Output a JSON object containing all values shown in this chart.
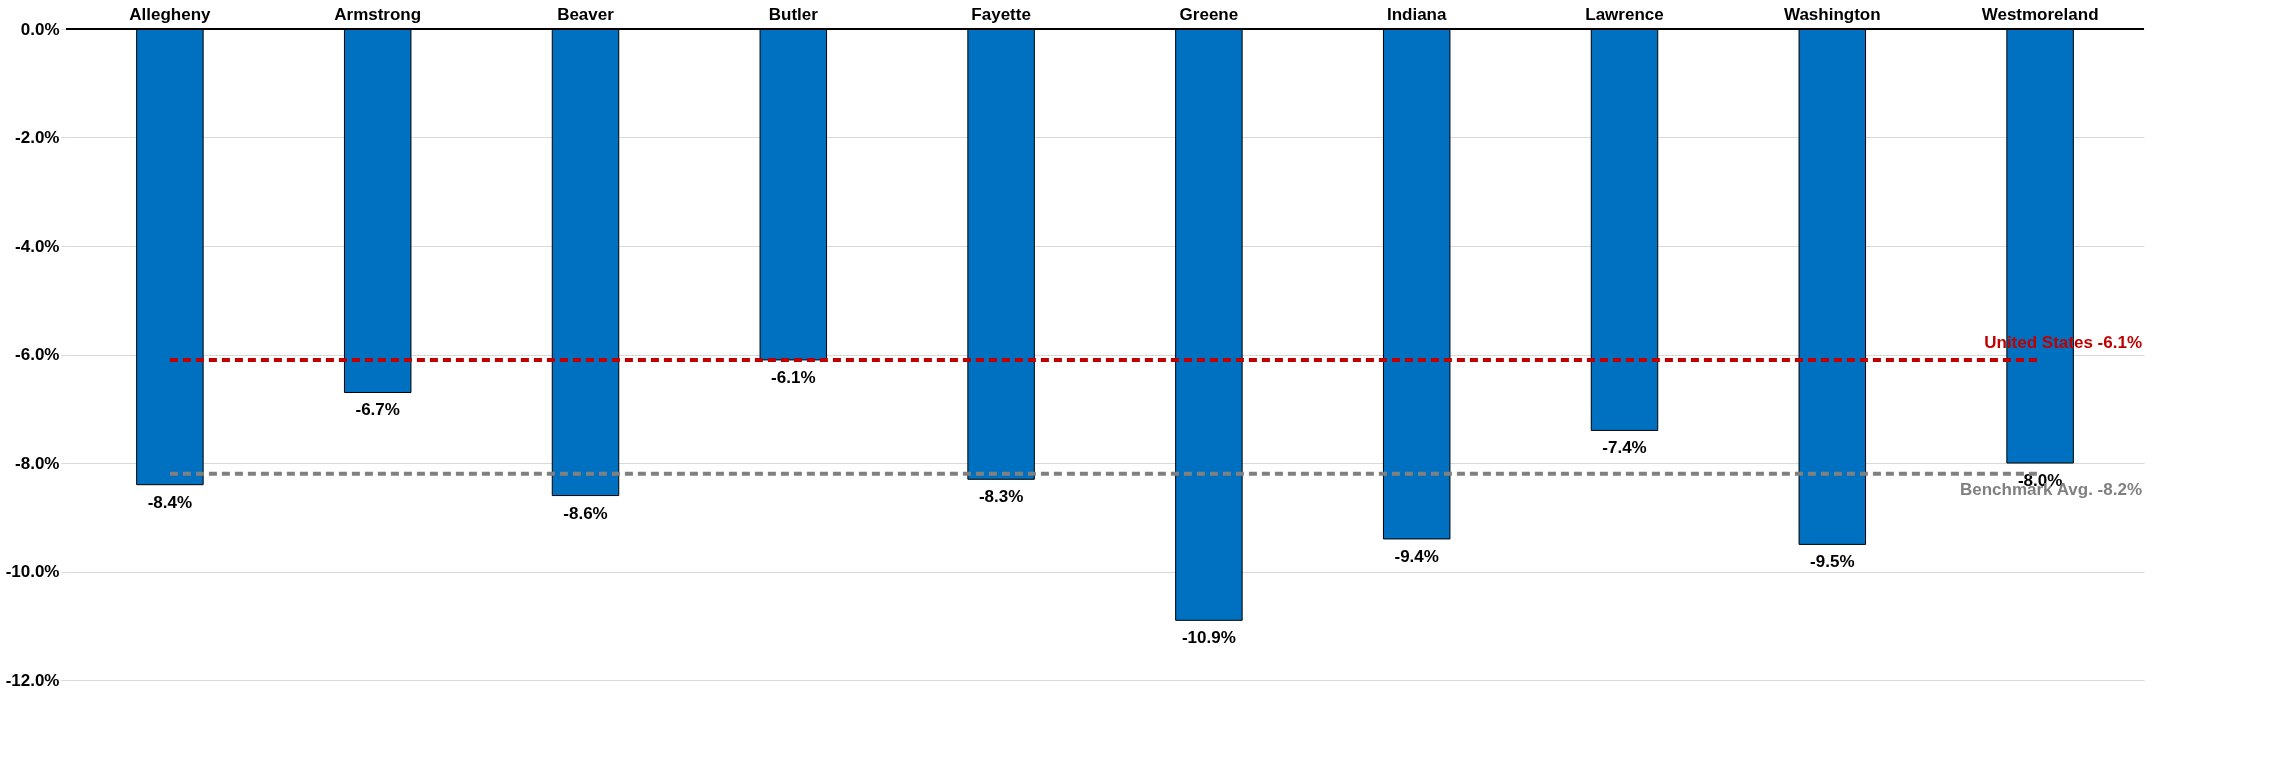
{
  "chart_data": {
    "type": "bar",
    "categories": [
      "Allegheny",
      "Armstrong",
      "Beaver",
      "Butler",
      "Fayette",
      "Greene",
      "Indiana",
      "Lawrence",
      "Washington",
      "Westmoreland"
    ],
    "values": [
      -8.4,
      -6.7,
      -8.6,
      -6.1,
      -8.3,
      -10.9,
      -9.4,
      -7.4,
      -9.5,
      -8.0
    ],
    "value_labels": [
      "-8.4%",
      "-6.7%",
      "-8.6%",
      "-6.1%",
      "-8.3%",
      "-10.9%",
      "-9.4%",
      "-7.4%",
      "-9.5%",
      "-8.0%"
    ],
    "color": "#0070c0",
    "ylim": [
      -12,
      0
    ],
    "yticks": [
      {
        "value": -12,
        "label": "-12.0%"
      },
      {
        "value": -10,
        "label": "-10.0%"
      },
      {
        "value": -8,
        "label": "-8.0%"
      },
      {
        "value": -6,
        "label": "-6.0%"
      },
      {
        "value": -4,
        "label": "-4.0%"
      },
      {
        "value": -2,
        "label": "-2.0%"
      },
      {
        "value": 0,
        "label": "0.0%"
      }
    ],
    "grid": "y",
    "ref_lines": [
      {
        "axis": "y",
        "value": -6.1,
        "label": "United States -6.1%",
        "color": "#c00000",
        "line_style": "dashed"
      },
      {
        "axis": "y",
        "value": -8.2,
        "label": "Benchmark Avg. -8.2%",
        "color": "#808080",
        "line_style": "dashed"
      }
    ]
  }
}
